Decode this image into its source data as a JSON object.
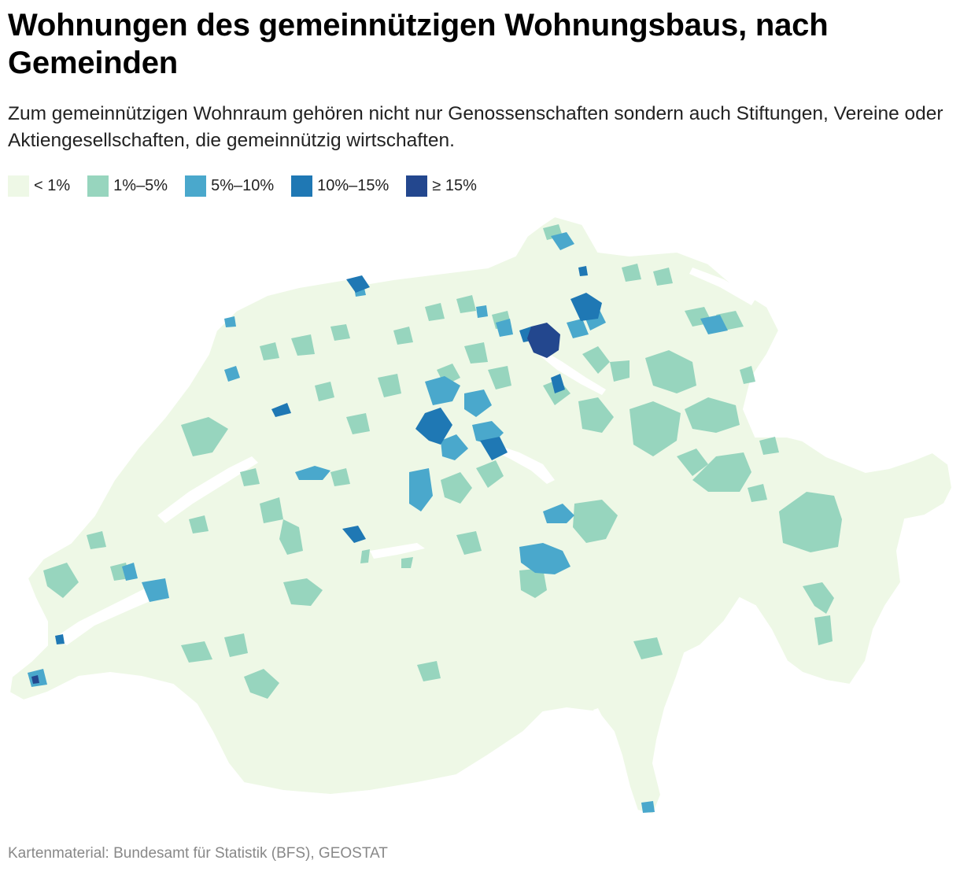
{
  "title": "Wohnungen des gemeinnützigen Wohnungsbaus, nach Gemeinden",
  "subtitle": "Zum gemeinnützigen Wohnraum gehören nicht nur Genossenschaften sondern auch Stiftungen, Vereine oder Aktiengesellschaften, die gemeinnützig wirtschaften.",
  "legend": [
    {
      "label": "< 1%",
      "color": "#eef8e6"
    },
    {
      "label": "1%–5%",
      "color": "#97d5be"
    },
    {
      "label": "5%–10%",
      "color": "#4aa8cc"
    },
    {
      "label": "10%–15%",
      "color": "#1f78b4"
    },
    {
      "label": "≥ 15%",
      "color": "#23478e"
    }
  ],
  "source": "Kartenmaterial: Bundesamt für Statistik (BFS), GEOSTAT"
}
